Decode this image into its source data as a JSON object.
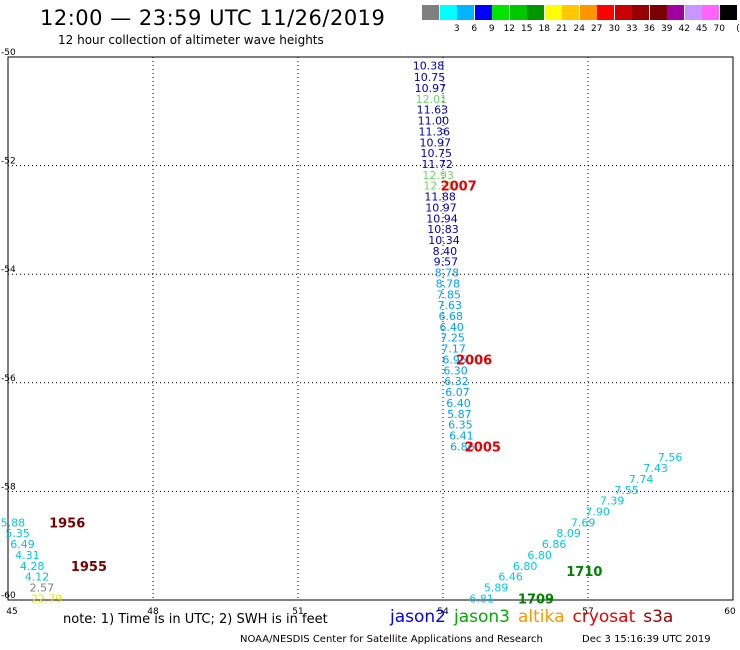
{
  "header": {
    "title": "12:00 — 23:59 UTC 11/26/2019",
    "subtitle": "12 hour collection of altimeter wave heights"
  },
  "legend": {
    "unit_label": "(ft)",
    "bins": [
      {
        "label": "",
        "color": "#808080"
      },
      {
        "label": "3",
        "color": "#00ffff"
      },
      {
        "label": "6",
        "color": "#00b4ff"
      },
      {
        "label": "9",
        "color": "#0000ff"
      },
      {
        "label": "12",
        "color": "#00e600"
      },
      {
        "label": "15",
        "color": "#00c800"
      },
      {
        "label": "18",
        "color": "#009600"
      },
      {
        "label": "21",
        "color": "#ffff00"
      },
      {
        "label": "24",
        "color": "#ffc800"
      },
      {
        "label": "27",
        "color": "#ff9600"
      },
      {
        "label": "30",
        "color": "#ff0000"
      },
      {
        "label": "33",
        "color": "#c80000"
      },
      {
        "label": "36",
        "color": "#960000"
      },
      {
        "label": "39",
        "color": "#7a0000"
      },
      {
        "label": "42",
        "color": "#a000a0"
      },
      {
        "label": "45",
        "color": "#c896ff"
      },
      {
        "label": "70",
        "color": "#ff64ff"
      },
      {
        "label": "",
        "color": "#000000"
      }
    ]
  },
  "chart_data": {
    "type": "scatter",
    "xlim": [
      45,
      60
    ],
    "ylim": [
      -60,
      -50
    ],
    "x_ticks": [
      "45",
      "48",
      "51",
      "54",
      "57",
      "60"
    ],
    "y_ticks": [
      "-50",
      "-52",
      "-54",
      "-56",
      "-58",
      "-60"
    ],
    "grid": true,
    "passes": [
      {
        "mission": "jason2",
        "points": [
          {
            "x": 53.7,
            "y": -50.16,
            "v": "10.38",
            "color": "#0000b4"
          },
          {
            "x": 53.72,
            "y": -50.37,
            "v": "10.75",
            "color": "#0000b4"
          },
          {
            "x": 53.74,
            "y": -50.57,
            "v": "10.97",
            "color": "#0000b4"
          },
          {
            "x": 53.76,
            "y": -50.77,
            "v": "12.01",
            "color": "#66dd66"
          },
          {
            "x": 53.78,
            "y": -50.97,
            "v": "11.63",
            "color": "#0000b4"
          },
          {
            "x": 53.8,
            "y": -51.17,
            "v": "11.00",
            "color": "#0000b4"
          },
          {
            "x": 53.82,
            "y": -51.37,
            "v": "11.36",
            "color": "#0000b4"
          },
          {
            "x": 53.84,
            "y": -51.57,
            "v": "10.97",
            "color": "#0000b4"
          },
          {
            "x": 53.86,
            "y": -51.77,
            "v": "10.75",
            "color": "#0000b4"
          },
          {
            "x": 53.88,
            "y": -51.97,
            "v": "11.72",
            "color": "#0000b4"
          },
          {
            "x": 53.9,
            "y": -52.17,
            "v": "12.93",
            "color": "#66dd66"
          },
          {
            "x": 53.92,
            "y": -52.37,
            "v": "12.22",
            "color": "#66dd66"
          },
          {
            "x": 53.94,
            "y": -52.57,
            "v": "11.88",
            "color": "#0000b4"
          },
          {
            "x": 53.96,
            "y": -52.77,
            "v": "10.97",
            "color": "#0000b4"
          },
          {
            "x": 53.98,
            "y": -52.97,
            "v": "10.94",
            "color": "#0000b4"
          },
          {
            "x": 54.0,
            "y": -53.17,
            "v": "10.83",
            "color": "#0000b4"
          },
          {
            "x": 54.02,
            "y": -53.37,
            "v": "10.34",
            "color": "#0000b4"
          },
          {
            "x": 54.04,
            "y": -53.57,
            "v": "8.40",
            "color": "#0000b4"
          },
          {
            "x": 54.06,
            "y": -53.77,
            "v": "9.57",
            "color": "#0000b4"
          },
          {
            "x": 54.08,
            "y": -53.97,
            "v": "8.78",
            "color": "#00a0ff"
          },
          {
            "x": 54.1,
            "y": -54.17,
            "v": "8.78",
            "color": "#00a0ff"
          },
          {
            "x": 54.12,
            "y": -54.37,
            "v": "7.85",
            "color": "#00a0ff"
          },
          {
            "x": 54.14,
            "y": -54.57,
            "v": "7.63",
            "color": "#00a0ff"
          },
          {
            "x": 54.16,
            "y": -54.77,
            "v": "6.68",
            "color": "#00a0ff"
          },
          {
            "x": 54.18,
            "y": -54.97,
            "v": "6.40",
            "color": "#00a0ff"
          },
          {
            "x": 54.2,
            "y": -55.17,
            "v": "7.25",
            "color": "#00a0ff"
          },
          {
            "x": 54.22,
            "y": -55.37,
            "v": "7.17",
            "color": "#00a0ff"
          },
          {
            "x": 54.24,
            "y": -55.57,
            "v": "6.95",
            "color": "#00a0ff"
          },
          {
            "x": 54.26,
            "y": -55.77,
            "v": "6.30",
            "color": "#00a0ff"
          },
          {
            "x": 54.28,
            "y": -55.97,
            "v": "6.32",
            "color": "#00a0ff"
          },
          {
            "x": 54.3,
            "y": -56.17,
            "v": "6.07",
            "color": "#00a0ff"
          },
          {
            "x": 54.32,
            "y": -56.37,
            "v": "6.40",
            "color": "#00a0ff"
          },
          {
            "x": 54.34,
            "y": -56.57,
            "v": "5.87",
            "color": "#00a0ff"
          },
          {
            "x": 54.36,
            "y": -56.77,
            "v": "6.35",
            "color": "#00a0ff"
          },
          {
            "x": 54.38,
            "y": -56.97,
            "v": "6.41",
            "color": "#00a0ff"
          },
          {
            "x": 54.4,
            "y": -57.17,
            "v": "6.86",
            "color": "#00a0ff"
          }
        ]
      },
      {
        "mission": "jason2",
        "points": [
          {
            "x": 45.1,
            "y": -58.57,
            "v": "5.88",
            "color": "#00c8e6"
          },
          {
            "x": 45.2,
            "y": -58.77,
            "v": "5.35",
            "color": "#00c8e6"
          },
          {
            "x": 45.3,
            "y": -58.97,
            "v": "6.49",
            "color": "#00c8e6"
          },
          {
            "x": 45.4,
            "y": -59.17,
            "v": "4.31",
            "color": "#00c8e6"
          },
          {
            "x": 45.5,
            "y": -59.37,
            "v": "4.28",
            "color": "#00c8e6"
          },
          {
            "x": 45.6,
            "y": -59.57,
            "v": "4.12",
            "color": "#00c8e6"
          },
          {
            "x": 45.7,
            "y": -59.77,
            "v": "2.57",
            "color": "#808080"
          },
          {
            "x": 45.8,
            "y": -59.97,
            "v": "22.79",
            "color": "#e6e600"
          }
        ]
      },
      {
        "mission": "jason3",
        "points": [
          {
            "x": 54.8,
            "y": -59.97,
            "v": "6.81",
            "color": "#00c8e6"
          },
          {
            "x": 55.1,
            "y": -59.77,
            "v": "5.89",
            "color": "#00c8e6"
          },
          {
            "x": 55.4,
            "y": -59.57,
            "v": "6.46",
            "color": "#00c8e6"
          },
          {
            "x": 55.7,
            "y": -59.37,
            "v": "6.80",
            "color": "#00c8e6"
          },
          {
            "x": 56.0,
            "y": -59.17,
            "v": "6.80",
            "color": "#00c8e6"
          },
          {
            "x": 56.3,
            "y": -58.97,
            "v": "6.86",
            "color": "#00c8e6"
          },
          {
            "x": 56.6,
            "y": -58.77,
            "v": "8.09",
            "color": "#00c8e6"
          },
          {
            "x": 56.9,
            "y": -58.57,
            "v": "7.69",
            "color": "#00c8e6"
          },
          {
            "x": 57.2,
            "y": -58.37,
            "v": "7.90",
            "color": "#00c8e6"
          },
          {
            "x": 57.5,
            "y": -58.17,
            "v": "7.39",
            "color": "#00c8e6"
          },
          {
            "x": 57.8,
            "y": -57.97,
            "v": "7.55",
            "color": "#00c8e6"
          },
          {
            "x": 58.1,
            "y": -57.77,
            "v": "7.74",
            "color": "#00c8e6"
          },
          {
            "x": 58.4,
            "y": -57.57,
            "v": "7.43",
            "color": "#00c8e6"
          },
          {
            "x": 58.7,
            "y": -57.37,
            "v": "7.56",
            "color": "#00c8e6"
          }
        ]
      }
    ],
    "time_labels": [
      {
        "text": "2007",
        "x": 53.95,
        "y": -52.37,
        "color": "#e60000"
      },
      {
        "text": "2006",
        "x": 54.27,
        "y": -55.57,
        "color": "#e60000"
      },
      {
        "text": "2005",
        "x": 54.45,
        "y": -57.17,
        "color": "#e60000"
      },
      {
        "text": "1956",
        "x": 45.85,
        "y": -58.57,
        "color": "#780000"
      },
      {
        "text": "1955",
        "x": 46.3,
        "y": -59.37,
        "color": "#780000"
      },
      {
        "text": "1710",
        "x": 56.55,
        "y": -59.47,
        "color": "#008200"
      },
      {
        "text": "1709",
        "x": 55.55,
        "y": -59.97,
        "color": "#008200"
      }
    ]
  },
  "notes": {
    "note": "note: 1) Time is in UTC; 2) SWH is in feet"
  },
  "missions": [
    {
      "name": "jason2",
      "color": "#0000ff"
    },
    {
      "name": "jason3",
      "color": "#00aa00"
    },
    {
      "name": "altika",
      "color": "#ff9600"
    },
    {
      "name": "cryosat",
      "color": "#e60000"
    },
    {
      "name": "s3a",
      "color": "#960000"
    }
  ],
  "footer": {
    "source": "NOAA/NESDIS Center for Satellite Applications and Research",
    "generated": "Dec  3 15:16:39 UTC 2019"
  }
}
